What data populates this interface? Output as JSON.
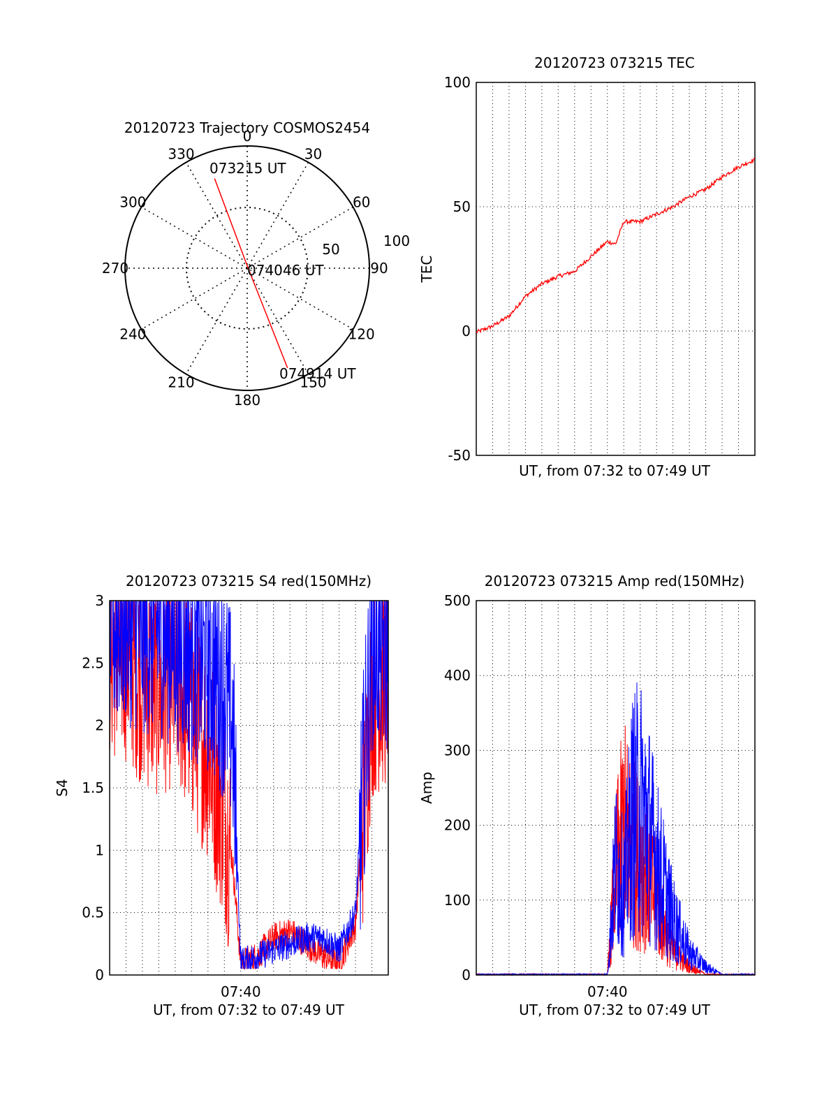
{
  "colors": {
    "series_primary": "#ff0000",
    "series_secondary": "#0000ff",
    "axes": "#000000",
    "grid": "#000000"
  },
  "chart_data": [
    {
      "type": "polar",
      "title": "20120723 Trajectory COSMOS2454",
      "azimuth_ticks": [
        "0",
        "30",
        "60",
        "90",
        "120",
        "150",
        "180",
        "210",
        "240",
        "270",
        "300",
        "330"
      ],
      "radial_tick_labels": [
        "50",
        "100"
      ],
      "grid": true,
      "trajectory": {
        "points": [
          {
            "az": 340,
            "r": 78
          },
          {
            "az": 0,
            "r": 2
          },
          {
            "az": 158,
            "r": 88
          }
        ],
        "labels": [
          "073215 UT",
          "074046 UT",
          "074914 UT"
        ]
      }
    },
    {
      "type": "line",
      "title": "20120723 073215 TEC",
      "xlabel": "UT, from 07:32 to 07:49 UT",
      "ylabel": "TEC",
      "xlim": [
        "07:32",
        "07:49"
      ],
      "ylim": [
        -50,
        100
      ],
      "yticks": [
        "-50",
        "0",
        "50",
        "100"
      ],
      "xticks": [],
      "grid": true,
      "series": [
        {
          "x": [
            "07:32.0",
            "07:33.0",
            "07:34.0",
            "07:35.0",
            "07:36.0",
            "07:37.0",
            "07:38.0",
            "07:39.0",
            "07:40.0",
            "07:40.5",
            "07:41.0",
            "07:42.0",
            "07:43.0",
            "07:44.0",
            "07:45.0",
            "07:46.0",
            "07:47.0",
            "07:48.0",
            "07:49.0"
          ],
          "values": [
            -0.5,
            2,
            6,
            14,
            19,
            22,
            24,
            30,
            36,
            35,
            44,
            44,
            47,
            50,
            54,
            57,
            62,
            66,
            69
          ]
        }
      ]
    },
    {
      "type": "line",
      "title": "20120723 073215 S4 red(150MHz)",
      "xlabel": "UT, from 07:32 to 07:49 UT",
      "ylabel": "S4",
      "xlim": [
        "07:32",
        "07:49"
      ],
      "ylim": [
        0,
        3
      ],
      "yticks": [
        "0",
        "0.5",
        "1",
        "1.5",
        "2",
        "2.5",
        "3"
      ],
      "xticks": [
        "07:40"
      ],
      "grid": true,
      "series": [
        {
          "x": [
            "07:32",
            "07:33",
            "07:34",
            "07:35",
            "07:36",
            "07:37",
            "07:38",
            "07:39",
            "07:39.5",
            "07:40",
            "07:41",
            "07:42",
            "07:43",
            "07:44",
            "07:45",
            "07:46",
            "07:47",
            "07:48",
            "07:49"
          ],
          "values": [
            2.6,
            2.6,
            2.4,
            2.3,
            2.4,
            2.1,
            1.8,
            1.3,
            0.9,
            0.1,
            0.15,
            0.3,
            0.35,
            0.25,
            0.15,
            0.1,
            0.4,
            2.3,
            2.4
          ]
        },
        {
          "x": [
            "07:32",
            "07:33",
            "07:34",
            "07:35",
            "07:36",
            "07:37",
            "07:38",
            "07:39",
            "07:39.5",
            "07:40",
            "07:41",
            "07:42",
            "07:43",
            "07:44",
            "07:45",
            "07:46",
            "07:47",
            "07:48",
            "07:49"
          ],
          "values": [
            2.8,
            2.9,
            2.8,
            2.8,
            2.7,
            2.6,
            2.5,
            2.3,
            2.0,
            0.1,
            0.15,
            0.2,
            0.25,
            0.3,
            0.3,
            0.2,
            0.5,
            2.7,
            2.6
          ]
        }
      ]
    },
    {
      "type": "line",
      "title": "20120723 073215 Amp red(150MHz)",
      "xlabel": "UT, from 07:32 to 07:49 UT",
      "ylabel": "Amp",
      "xlim": [
        "07:32",
        "07:49"
      ],
      "ylim": [
        0,
        500
      ],
      "yticks": [
        "0",
        "100",
        "200",
        "300",
        "400",
        "500"
      ],
      "xticks": [
        "07:40"
      ],
      "grid": true,
      "series": [
        {
          "x": [
            "07:32",
            "07:39",
            "07:40",
            "07:40.5",
            "07:41",
            "07:41.5",
            "07:42",
            "07:42.5",
            "07:43",
            "07:43.5",
            "07:44",
            "07:45",
            "07:46",
            "07:49"
          ],
          "values": [
            0,
            0,
            0,
            180,
            260,
            220,
            200,
            170,
            130,
            80,
            40,
            15,
            0,
            0
          ]
        },
        {
          "x": [
            "07:32",
            "07:39",
            "07:40",
            "07:40.5",
            "07:41",
            "07:41.5",
            "07:42",
            "07:42.5",
            "07:43",
            "07:43.5",
            "07:44",
            "07:45",
            "07:46",
            "07:47",
            "07:49"
          ],
          "values": [
            0,
            0,
            0,
            200,
            150,
            280,
            300,
            260,
            200,
            150,
            100,
            40,
            15,
            0,
            0
          ]
        }
      ]
    }
  ]
}
